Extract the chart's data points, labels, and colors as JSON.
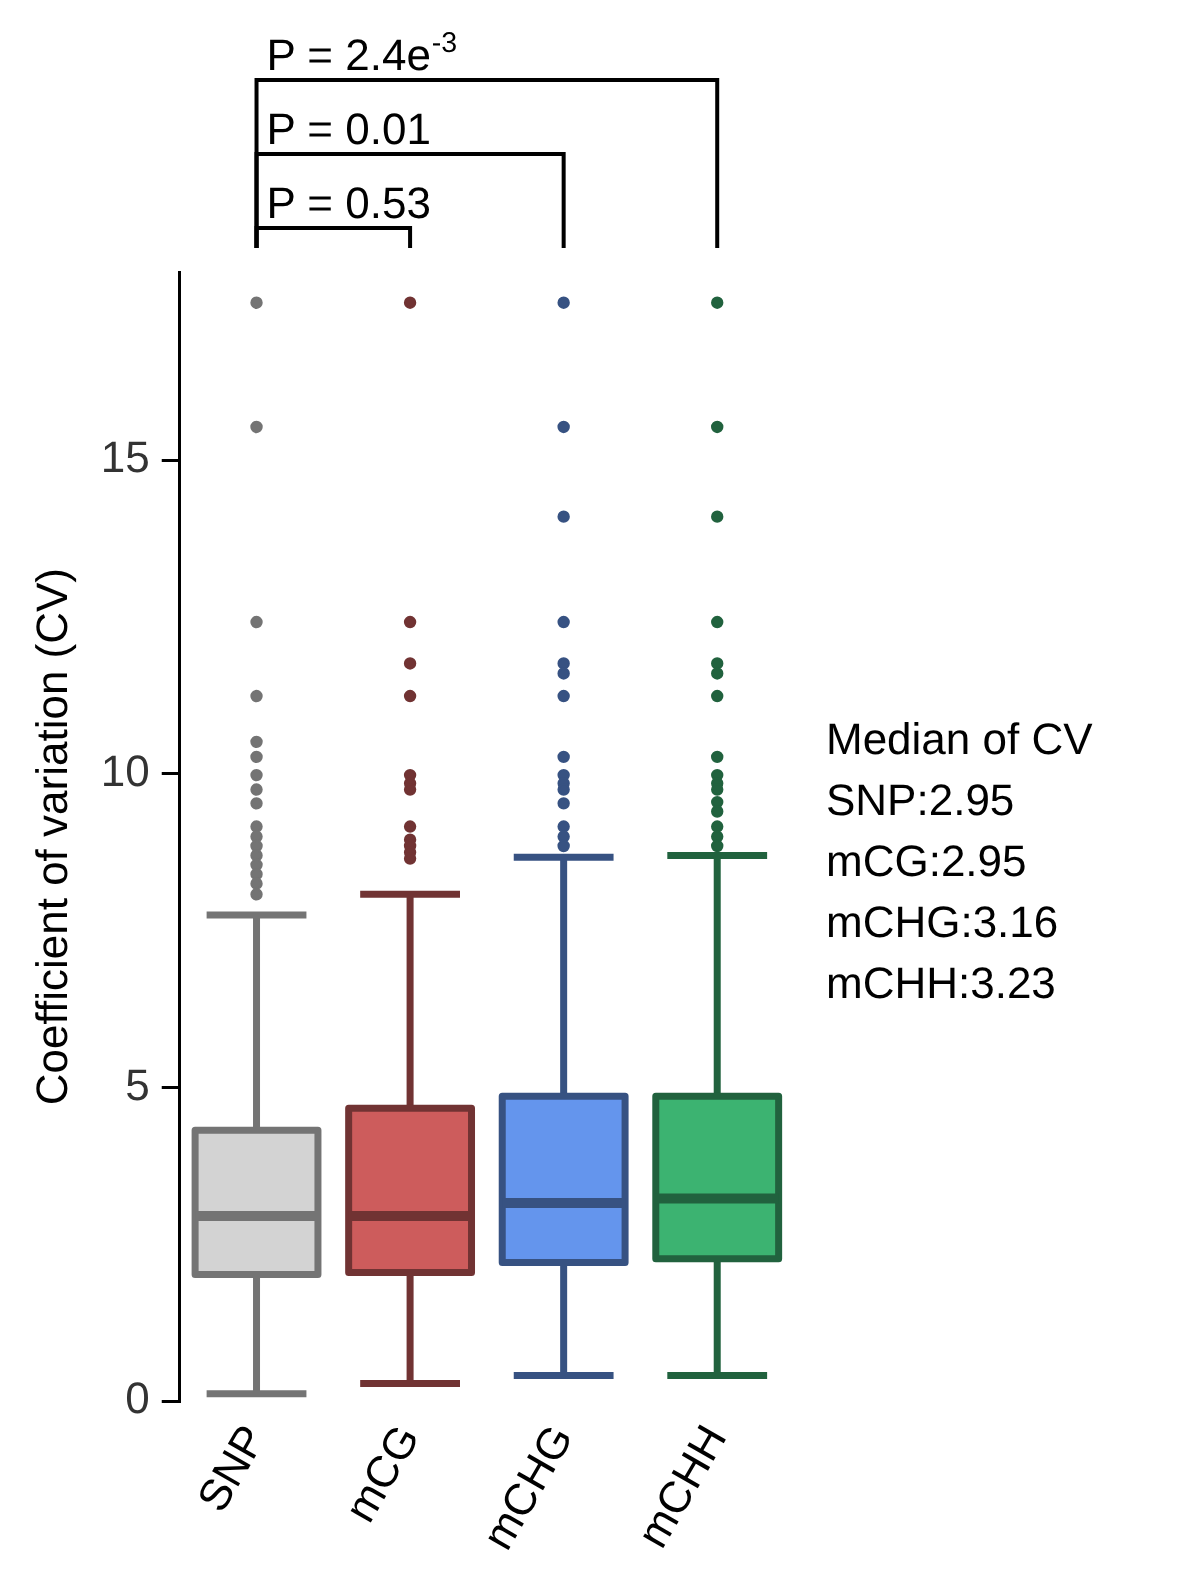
{
  "chart_data": {
    "type": "box",
    "ylabel": "Coefficient of variation (CV)",
    "categories": [
      "SNP",
      "mCG",
      "mCHG",
      "mCHH"
    ],
    "colors": [
      "#d3d3d3",
      "#cd5c5c",
      "#6495ed",
      "#3cb371"
    ],
    "boxes": [
      {
        "low": 0.12,
        "q1": 2.02,
        "median": 2.95,
        "q3": 4.32,
        "high": 7.75,
        "outliers": [
          17.51,
          15.53,
          12.42,
          11.24,
          10.51,
          10.27,
          9.98,
          9.75,
          9.53,
          9.16,
          9.0,
          8.85,
          8.7,
          8.55,
          8.4,
          8.25,
          8.08
        ]
      },
      {
        "low": 0.28,
        "q1": 2.05,
        "median": 2.95,
        "q3": 4.67,
        "high": 8.08,
        "outliers": [
          17.51,
          12.42,
          11.76,
          11.24,
          9.98,
          9.85,
          9.75,
          9.16,
          8.95,
          8.85,
          8.75,
          8.65
        ]
      },
      {
        "low": 0.41,
        "q1": 2.21,
        "median": 3.16,
        "q3": 4.86,
        "high": 8.67,
        "outliers": [
          17.51,
          15.53,
          14.1,
          12.42,
          11.76,
          11.6,
          11.24,
          10.27,
          9.98,
          9.85,
          9.75,
          9.53,
          9.16,
          9.0,
          8.85
        ]
      },
      {
        "low": 0.41,
        "q1": 2.27,
        "median": 3.23,
        "q3": 4.86,
        "high": 8.7,
        "outliers": [
          17.51,
          15.53,
          14.1,
          12.42,
          11.76,
          11.6,
          11.24,
          10.27,
          9.98,
          9.85,
          9.75,
          9.55,
          9.4,
          9.16,
          9.0,
          8.85
        ]
      }
    ],
    "ylim": [
      0,
      18
    ],
    "yticks": [
      0,
      5,
      10,
      15
    ],
    "grid": false,
    "legend": false,
    "annotations": [
      "P = 2.4e$^{-3}$",
      "P = 0.01",
      "P = 0.53",
      "Median of CV",
      "SNP:2.95",
      "mCG:2.95",
      "mCHG:3.16",
      "mCHH:3.23"
    ]
  }
}
